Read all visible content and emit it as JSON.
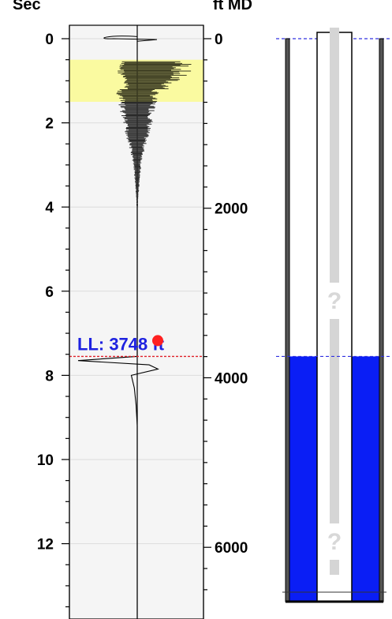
{
  "chart_data": {
    "type": "line",
    "title": "",
    "left_axis": {
      "label": "Sec",
      "range": [
        -0.3,
        13.6
      ],
      "ticks": [
        0,
        2,
        4,
        6,
        8,
        10,
        12
      ],
      "tick_labels": [
        "0",
        "2",
        "4",
        "6",
        "8",
        "10",
        "12"
      ]
    },
    "right_axis": {
      "label": "ft MD",
      "range": [
        -146,
        6625
      ],
      "ticks": [
        0,
        2000,
        4000,
        6000
      ],
      "tick_labels": [
        "0",
        "2000",
        "4000",
        "6000"
      ]
    },
    "highlight_band": {
      "from_sec": 0.5,
      "to_sec": 1.5,
      "color": "#fafaa0"
    },
    "liquid_level": {
      "label": "LL: 3748 ft",
      "depth_ft": 3748,
      "time_sec": 7.55,
      "line_color": "#e0202a",
      "marker_color": "#ff2020"
    },
    "acoustic_trace": {
      "baseline_note": "signal amplitude relative to center line",
      "envelope_sec": [
        0.6,
        0.8,
        1.0,
        1.2,
        1.4,
        1.7,
        2.0,
        2.5,
        3.0,
        3.5,
        3.9
      ],
      "envelope_amp": [
        0.95,
        0.9,
        0.7,
        0.55,
        0.5,
        0.45,
        0.38,
        0.22,
        0.1,
        0.05,
        0.02
      ],
      "reflection_sec": [
        7.55,
        7.65,
        7.75,
        7.85,
        8.0,
        8.3,
        8.7,
        9.2
      ],
      "reflection_amp": [
        0,
        -1.0,
        0.2,
        0.35,
        -0.1,
        -0.05,
        -0.02,
        0
      ]
    },
    "wellbore": {
      "fluid_color": "#0a1ef5",
      "fluid_top_ft": 3748,
      "bottom_ft": 6625,
      "unknown_marker": "?"
    },
    "colors": {
      "plot_background": "#f5f5f5",
      "trace": "#000000",
      "reflector_line": "#3030e0"
    }
  }
}
